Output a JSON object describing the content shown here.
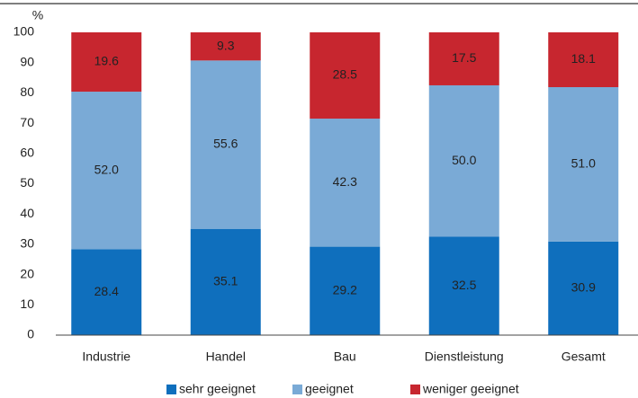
{
  "chart_data": {
    "type": "stacked_bar",
    "unit": "%",
    "categories": [
      "Industrie",
      "Handel",
      "Bau",
      "Dienstleistung",
      "Gesamt"
    ],
    "series": [
      {
        "name": "sehr geeignet",
        "color": "#0f6fbd",
        "values": [
          28.4,
          35.1,
          29.2,
          32.5,
          30.9
        ],
        "value_labels": [
          "28.4",
          "35.1",
          "29.2",
          "32.5",
          "30.9"
        ]
      },
      {
        "name": "geeignet",
        "color": "#7aaad6",
        "values": [
          52.0,
          55.6,
          42.3,
          50.0,
          51.0
        ],
        "value_labels": [
          "52.0",
          "55.6",
          "42.3",
          "50.0",
          "51.0"
        ]
      },
      {
        "name": "weniger geeignet",
        "color": "#c7262f",
        "values": [
          19.6,
          9.3,
          28.5,
          17.5,
          18.1
        ],
        "value_labels": [
          "19.6",
          "9.3",
          "28.5",
          "17.5",
          "18.1"
        ]
      }
    ],
    "ylim": [
      0,
      100
    ],
    "yticks": [
      0,
      10,
      20,
      30,
      40,
      50,
      60,
      70,
      80,
      90,
      100
    ],
    "grid": false
  }
}
